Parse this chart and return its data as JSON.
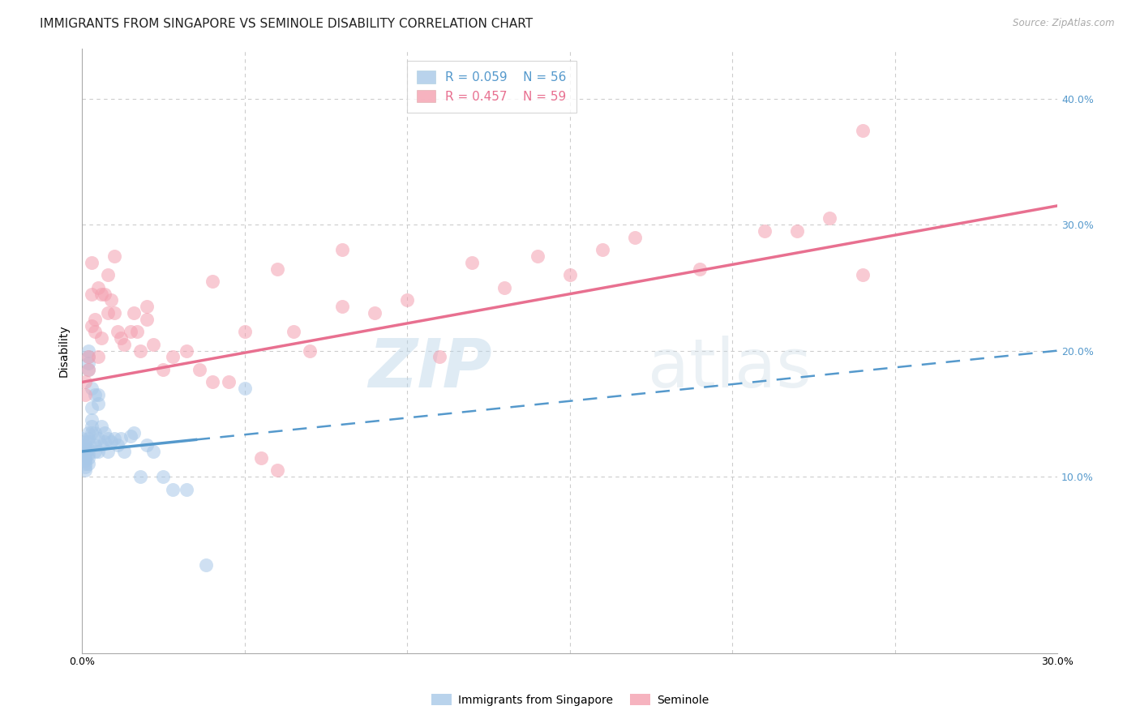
{
  "title": "IMMIGRANTS FROM SINGAPORE VS SEMINOLE DISABILITY CORRELATION CHART",
  "source": "Source: ZipAtlas.com",
  "ylabel": "Disability",
  "xlim": [
    0.0,
    0.3
  ],
  "ylim": [
    -0.04,
    0.44
  ],
  "yticks_right": [
    0.1,
    0.2,
    0.3,
    0.4
  ],
  "ytick_labels_right": [
    "10.0%",
    "20.0%",
    "30.0%",
    "40.0%"
  ],
  "xtick_positions": [
    0.0,
    0.05,
    0.1,
    0.15,
    0.2,
    0.25,
    0.3
  ],
  "xtick_labels": [
    "0.0%",
    "",
    "",
    "",
    "",
    "",
    "30.0%"
  ],
  "legend_entries": [
    {
      "label": "Immigrants from Singapore",
      "color": "#a8c8e8",
      "R": "0.059",
      "N": "56"
    },
    {
      "label": "Seminole",
      "color": "#f4a0b0",
      "R": "0.457",
      "N": "59"
    }
  ],
  "blue_scatter_x": [
    0.0,
    0.0,
    0.001,
    0.001,
    0.001,
    0.001,
    0.001,
    0.001,
    0.001,
    0.001,
    0.001,
    0.002,
    0.002,
    0.002,
    0.002,
    0.002,
    0.002,
    0.002,
    0.002,
    0.002,
    0.002,
    0.002,
    0.003,
    0.003,
    0.003,
    0.003,
    0.003,
    0.004,
    0.004,
    0.004,
    0.004,
    0.005,
    0.005,
    0.005,
    0.005,
    0.006,
    0.006,
    0.007,
    0.007,
    0.008,
    0.008,
    0.009,
    0.01,
    0.011,
    0.012,
    0.013,
    0.015,
    0.016,
    0.018,
    0.02,
    0.022,
    0.025,
    0.028,
    0.032,
    0.038,
    0.05
  ],
  "blue_scatter_y": [
    0.12,
    0.13,
    0.125,
    0.128,
    0.122,
    0.118,
    0.115,
    0.113,
    0.11,
    0.108,
    0.105,
    0.135,
    0.13,
    0.128,
    0.122,
    0.118,
    0.2,
    0.195,
    0.19,
    0.185,
    0.115,
    0.11,
    0.145,
    0.14,
    0.135,
    0.155,
    0.17,
    0.165,
    0.135,
    0.125,
    0.12,
    0.165,
    0.158,
    0.13,
    0.12,
    0.14,
    0.125,
    0.135,
    0.128,
    0.13,
    0.12,
    0.128,
    0.13,
    0.125,
    0.13,
    0.12,
    0.132,
    0.135,
    0.1,
    0.125,
    0.12,
    0.1,
    0.09,
    0.09,
    0.03,
    0.17
  ],
  "pink_scatter_x": [
    0.001,
    0.001,
    0.002,
    0.002,
    0.003,
    0.003,
    0.003,
    0.004,
    0.004,
    0.005,
    0.005,
    0.006,
    0.006,
    0.007,
    0.008,
    0.008,
    0.009,
    0.01,
    0.011,
    0.012,
    0.013,
    0.015,
    0.016,
    0.017,
    0.018,
    0.02,
    0.022,
    0.025,
    0.028,
    0.032,
    0.036,
    0.04,
    0.045,
    0.05,
    0.055,
    0.06,
    0.065,
    0.07,
    0.08,
    0.09,
    0.1,
    0.11,
    0.12,
    0.13,
    0.14,
    0.15,
    0.16,
    0.17,
    0.19,
    0.21,
    0.22,
    0.23,
    0.24,
    0.01,
    0.02,
    0.04,
    0.06,
    0.08,
    0.24
  ],
  "pink_scatter_y": [
    0.175,
    0.165,
    0.195,
    0.185,
    0.22,
    0.27,
    0.245,
    0.225,
    0.215,
    0.195,
    0.25,
    0.245,
    0.21,
    0.245,
    0.26,
    0.23,
    0.24,
    0.23,
    0.215,
    0.21,
    0.205,
    0.215,
    0.23,
    0.215,
    0.2,
    0.225,
    0.205,
    0.185,
    0.195,
    0.2,
    0.185,
    0.175,
    0.175,
    0.215,
    0.115,
    0.105,
    0.215,
    0.2,
    0.235,
    0.23,
    0.24,
    0.195,
    0.27,
    0.25,
    0.275,
    0.26,
    0.28,
    0.29,
    0.265,
    0.295,
    0.295,
    0.305,
    0.26,
    0.275,
    0.235,
    0.255,
    0.265,
    0.28,
    0.375
  ],
  "blue_line_x0": 0.0,
  "blue_line_x_solid_end": 0.035,
  "blue_line_x1": 0.3,
  "blue_line_y0": 0.12,
  "blue_line_y1": 0.2,
  "pink_line_x0": 0.0,
  "pink_line_x1": 0.3,
  "pink_line_y0": 0.175,
  "pink_line_y1": 0.315,
  "blue_dot_color": "#a8c8e8",
  "pink_dot_color": "#f4a0b0",
  "blue_line_color": "#5599cc",
  "pink_line_color": "#e87090",
  "background_color": "#ffffff",
  "grid_color": "#cccccc",
  "watermark_zip": "ZIP",
  "watermark_atlas": "atlas",
  "title_fontsize": 11,
  "axis_label_fontsize": 10,
  "tick_fontsize": 9,
  "legend_fontsize": 11
}
